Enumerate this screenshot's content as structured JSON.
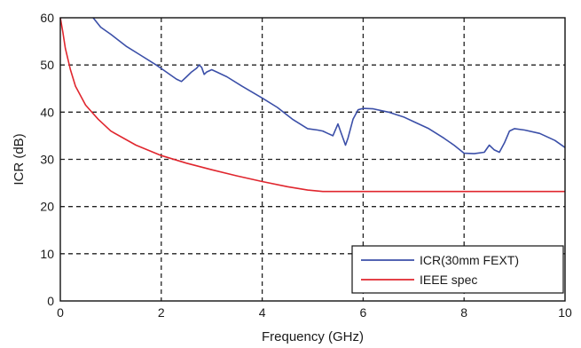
{
  "chart_data": {
    "type": "line",
    "xlabel": "Frequency (GHz)",
    "ylabel": "ICR (dB)",
    "xlim": [
      0,
      10
    ],
    "ylim": [
      0,
      60
    ],
    "xticks": [
      "0",
      "2",
      "4",
      "6",
      "8",
      "10"
    ],
    "yticks": [
      "0",
      "10",
      "20",
      "30",
      "40",
      "50",
      "60"
    ],
    "grid": true,
    "legend_position": "bottom-right",
    "series": [
      {
        "name": "ICR(30mm FEXT)",
        "color": "#3b4fa8",
        "points": [
          [
            0.65,
            60
          ],
          [
            0.8,
            58
          ],
          [
            1.0,
            56.5
          ],
          [
            1.3,
            54
          ],
          [
            1.6,
            52
          ],
          [
            1.9,
            50
          ],
          [
            2.1,
            48.5
          ],
          [
            2.3,
            47
          ],
          [
            2.4,
            46.5
          ],
          [
            2.5,
            47.5
          ],
          [
            2.6,
            48.5
          ],
          [
            2.7,
            49.3
          ],
          [
            2.75,
            50
          ],
          [
            2.8,
            49.5
          ],
          [
            2.85,
            48
          ],
          [
            2.9,
            48.5
          ],
          [
            3.0,
            49
          ],
          [
            3.1,
            48.5
          ],
          [
            3.3,
            47.5
          ],
          [
            3.6,
            45.5
          ],
          [
            4.0,
            43
          ],
          [
            4.3,
            41
          ],
          [
            4.6,
            38.5
          ],
          [
            4.9,
            36.5
          ],
          [
            5.1,
            36.2
          ],
          [
            5.2,
            36
          ],
          [
            5.3,
            35.5
          ],
          [
            5.4,
            35
          ],
          [
            5.5,
            37.5
          ],
          [
            5.55,
            36
          ],
          [
            5.65,
            33
          ],
          [
            5.7,
            34.5
          ],
          [
            5.8,
            38.5
          ],
          [
            5.9,
            40.5
          ],
          [
            6.0,
            40.8
          ],
          [
            6.2,
            40.7
          ],
          [
            6.5,
            40
          ],
          [
            6.8,
            39
          ],
          [
            7.0,
            38
          ],
          [
            7.3,
            36.5
          ],
          [
            7.6,
            34.5
          ],
          [
            7.8,
            33
          ],
          [
            8.0,
            31.3
          ],
          [
            8.2,
            31.2
          ],
          [
            8.4,
            31.5
          ],
          [
            8.5,
            33
          ],
          [
            8.6,
            32
          ],
          [
            8.7,
            31.5
          ],
          [
            8.8,
            33.5
          ],
          [
            8.9,
            36
          ],
          [
            9.0,
            36.5
          ],
          [
            9.2,
            36.2
          ],
          [
            9.5,
            35.5
          ],
          [
            9.8,
            34
          ],
          [
            10.0,
            32.5
          ]
        ]
      },
      {
        "name": "IEEE spec",
        "color": "#e0262e",
        "points": [
          [
            0.0,
            60
          ],
          [
            0.05,
            57
          ],
          [
            0.1,
            53.5
          ],
          [
            0.2,
            49
          ],
          [
            0.3,
            45.5
          ],
          [
            0.5,
            41.5
          ],
          [
            0.75,
            38.5
          ],
          [
            1.0,
            36
          ],
          [
            1.5,
            33
          ],
          [
            2.0,
            30.8
          ],
          [
            2.5,
            29.2
          ],
          [
            3.0,
            27.8
          ],
          [
            3.5,
            26.5
          ],
          [
            4.0,
            25.3
          ],
          [
            4.5,
            24.2
          ],
          [
            4.9,
            23.5
          ],
          [
            5.2,
            23.2
          ],
          [
            6.0,
            23.2
          ],
          [
            7.0,
            23.2
          ],
          [
            8.0,
            23.2
          ],
          [
            9.0,
            23.2
          ],
          [
            10.0,
            23.2
          ]
        ]
      }
    ]
  }
}
